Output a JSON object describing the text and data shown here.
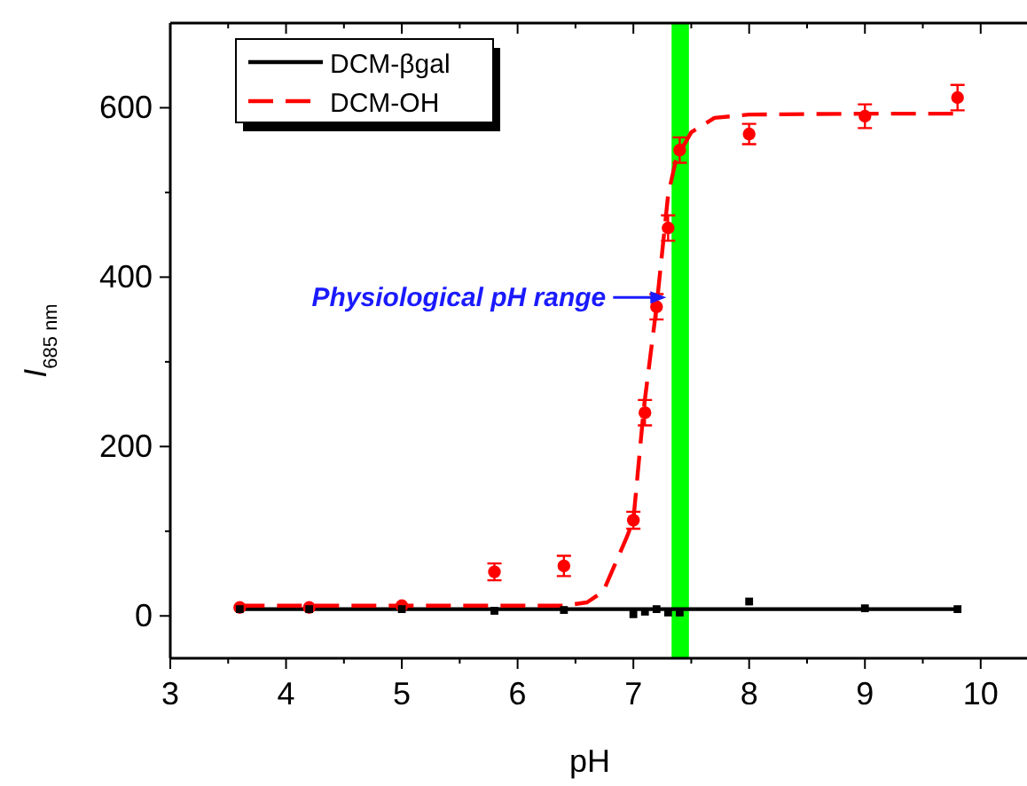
{
  "chart_data": {
    "type": "line",
    "xlabel": "pH",
    "ylabel": "I$_{685 nm}$",
    "xlim": [
      3,
      10.4
    ],
    "ylim": [
      -50,
      700
    ],
    "xticks": [
      3,
      {
        "value": 3.5,
        "label": null
      },
      4,
      {
        "value": 4.5,
        "label": null
      },
      5,
      {
        "value": 5.5,
        "label": null
      },
      6,
      {
        "value": 6.5,
        "label": null
      },
      7,
      {
        "value": 7.5,
        "label": null
      },
      8,
      {
        "value": 8.5,
        "label": null
      },
      9,
      {
        "value": 9.5,
        "label": null
      },
      10
    ],
    "yticks": [
      0,
      {
        "value": 100,
        "label": null
      },
      200,
      {
        "value": 300,
        "label": null
      },
      400,
      {
        "value": 500,
        "label": null
      },
      600
    ],
    "legend": "top left",
    "grid": false,
    "series": [
      {
        "name": "DCM-βgal",
        "color": "#000000",
        "line_style": "solid",
        "marker": "none",
        "x": [
          3.6,
          9.8
        ],
        "values": [
          8,
          8
        ]
      },
      {
        "name": "DCM-OH",
        "color": "#ff0000",
        "line_style": "dashed",
        "marker": "none",
        "x": [
          3.6,
          6.4,
          6.6,
          6.74,
          6.94,
          7.0,
          7.09,
          7.2,
          7.3,
          7.37,
          7.5,
          7.7,
          8.0,
          9.0,
          9.8
        ],
        "values": [
          12,
          12,
          16,
          29,
          92,
          113,
          245,
          365,
          497,
          540,
          571,
          588,
          592,
          593,
          593
        ]
      },
      {
        "type": "scatter",
        "color": "#ff0000",
        "marker": "circle",
        "x": [
          3.6,
          4.2,
          5.0,
          5.8,
          6.4,
          7.0,
          7.1,
          7.2,
          7.3,
          7.4,
          8.0,
          9.0,
          9.8
        ],
        "values": [
          10,
          10,
          12,
          52,
          59,
          113,
          240,
          365,
          458,
          550,
          569,
          590,
          612
        ],
        "errors": [
          null,
          null,
          null,
          10,
          12,
          10,
          15,
          15,
          15,
          15,
          12,
          14,
          15
        ]
      },
      {
        "type": "scatter",
        "color": "#000000",
        "marker": "square",
        "x": [
          3.6,
          4.2,
          5.0,
          5.8,
          6.4,
          7.0,
          7.1,
          7.2,
          7.3,
          7.4,
          8.0,
          9.0,
          9.8
        ],
        "values": [
          8,
          8,
          8,
          6,
          7,
          2,
          5,
          8,
          4,
          4,
          17,
          9,
          8
        ]
      }
    ],
    "bands": [
      {
        "axis": "x",
        "from": 7.33,
        "to": 7.48,
        "color": "#00ff00"
      }
    ],
    "annotations": [
      {
        "text": "Physiological pH range",
        "x": 7.3,
        "y": 376
      }
    ]
  }
}
